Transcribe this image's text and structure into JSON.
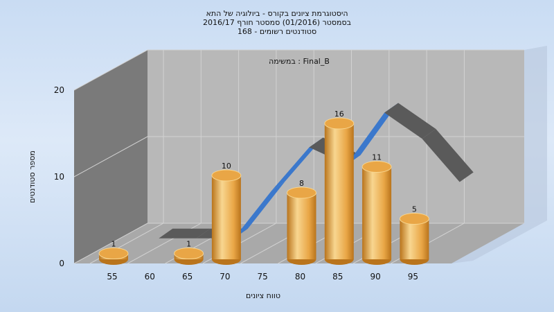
{
  "title_lines": [
    "היסטוגרמת ציונים בקורס - ביולוגיה של התא",
    "בסמסטר  (01/2016)  סמסטר חורף 2016/17",
    "סטודנטים רשומים - 168"
  ],
  "colors": {
    "bar_light": "#f8d690",
    "bar_mid": "#e9a646",
    "bar_dark": "#b9741c",
    "blue_ribbon": "#3b78cc",
    "gray_ribbon": "#5a5a5a",
    "back_wall": "#b8b8b8",
    "left_wall": "#7a7a7a",
    "floor": "#a9a9a9"
  },
  "chart_data": {
    "type": "bar",
    "title": "היסטוגרמת ציונים בקורס - ביולוגיה של התא",
    "subtitle": "בסמסטר  (01/2016)  סמסטר חורף 2016/17 — סטודנטים רשומים - 168",
    "panel_label": "במשימה : Final_B",
    "xlabel": "טווח ציונים",
    "ylabel": "מספר סטודנטים",
    "x_ticks": [
      "55",
      "60",
      "65",
      "70",
      "75",
      "80",
      "85",
      "90",
      "95"
    ],
    "y_ticks": [
      "0",
      "10",
      "20"
    ],
    "ylim": [
      0,
      20
    ],
    "grid": true,
    "bars": [
      {
        "bin": 55,
        "value": 1,
        "label": "1"
      },
      {
        "bin": 65,
        "value": 1,
        "label": "1"
      },
      {
        "bin": 70,
        "value": 10,
        "label": "10"
      },
      {
        "bin": 80,
        "value": 8,
        "label": "8"
      },
      {
        "bin": 85,
        "value": 16,
        "label": "16"
      },
      {
        "bin": 90,
        "value": 11,
        "label": "11"
      },
      {
        "bin": 95,
        "value": 5,
        "label": "5"
      }
    ],
    "trend_ribbon": {
      "x": [
        60,
        65,
        70,
        75,
        80,
        85,
        90,
        95,
        100
      ],
      "values": [
        0.5,
        0.5,
        0.5,
        6,
        11,
        9,
        15,
        12,
        7
      ]
    }
  }
}
